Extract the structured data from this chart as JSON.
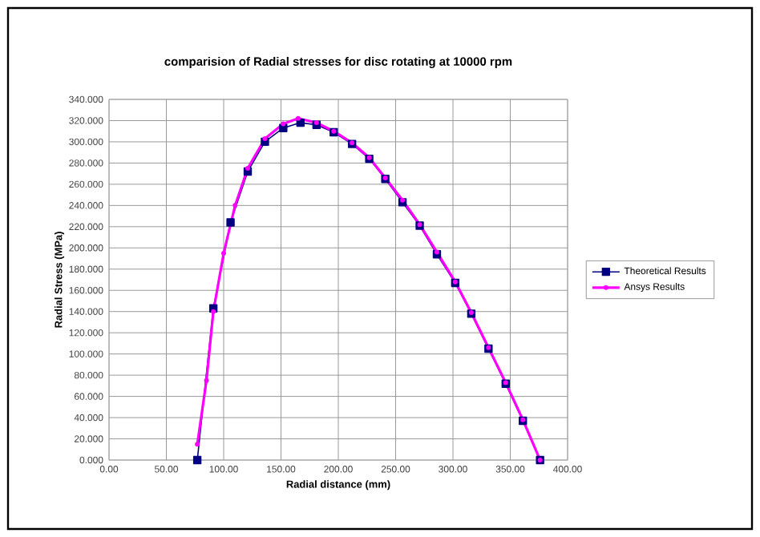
{
  "chart_data": {
    "type": "line",
    "title": "comparision of Radial stresses for disc rotating at 10000 rpm",
    "xlabel": "Radial distance (mm)",
    "ylabel": "Radial Stress (MPa)",
    "xlim": [
      0,
      400
    ],
    "xticks": [
      {
        "value": 0,
        "label": "0.00"
      },
      {
        "value": 50,
        "label": "50.00"
      },
      {
        "value": 100,
        "label": "100.00"
      },
      {
        "value": 150,
        "label": "150.00"
      },
      {
        "value": 200,
        "label": "200.00"
      },
      {
        "value": 250,
        "label": "250.00"
      },
      {
        "value": 300,
        "label": "300.00"
      },
      {
        "value": 350,
        "label": "350.00"
      },
      {
        "value": 400,
        "label": "400.00"
      }
    ],
    "ylim": [
      0,
      340
    ],
    "yticks": [
      {
        "value": 0,
        "label": "0.000"
      },
      {
        "value": 20,
        "label": "20.000"
      },
      {
        "value": 40,
        "label": "40.000"
      },
      {
        "value": 60,
        "label": "60.000"
      },
      {
        "value": 80,
        "label": "80.000"
      },
      {
        "value": 100,
        "label": "100.000"
      },
      {
        "value": 120,
        "label": "120.000"
      },
      {
        "value": 140,
        "label": "140.000"
      },
      {
        "value": 160,
        "label": "160.000"
      },
      {
        "value": 180,
        "label": "180.000"
      },
      {
        "value": 200,
        "label": "200.000"
      },
      {
        "value": 220,
        "label": "220.000"
      },
      {
        "value": 240,
        "label": "240.000"
      },
      {
        "value": 260,
        "label": "260.000"
      },
      {
        "value": 280,
        "label": "280.000"
      },
      {
        "value": 300,
        "label": "300.000"
      },
      {
        "value": 320,
        "label": "320.000"
      },
      {
        "value": 340,
        "label": "340.000"
      }
    ],
    "grid": true,
    "legend": "right",
    "series": [
      {
        "name": "Theoretical Results",
        "color": "#000080",
        "marker": "square",
        "x": [
          77,
          91,
          106,
          121,
          136,
          152,
          167,
          181,
          196,
          212,
          227,
          241,
          256,
          271,
          286,
          302,
          316,
          331,
          346,
          361,
          376
        ],
        "values": [
          0,
          143,
          224,
          272,
          300,
          313,
          318,
          316,
          309,
          298,
          284,
          265,
          243,
          221,
          194,
          167,
          138,
          105,
          72,
          37,
          0
        ]
      },
      {
        "name": "Ansys Results",
        "color": "#ff00ff",
        "marker": "circle",
        "x": [
          77,
          85,
          91,
          100,
          110,
          121,
          136,
          152,
          165,
          181,
          196,
          212,
          227,
          241,
          256,
          271,
          286,
          302,
          316,
          331,
          346,
          361,
          376
        ],
        "values": [
          15,
          75,
          140,
          195,
          240,
          275,
          303,
          317,
          322,
          318,
          310,
          299,
          285,
          266,
          245,
          222,
          196,
          168,
          139,
          106,
          73,
          38,
          0
        ]
      }
    ]
  }
}
